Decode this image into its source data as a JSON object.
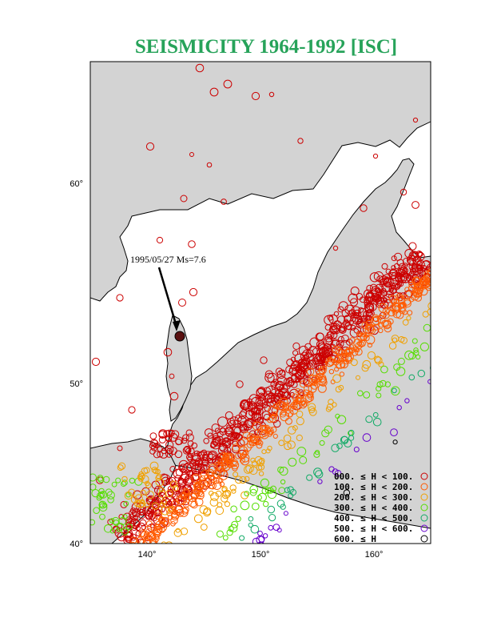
{
  "title": "SEISMICITY 1964-1992 [ISC]",
  "axes": {
    "lon_range": [
      135,
      165
    ],
    "lat_range": [
      40,
      66
    ],
    "x_ticks": [
      "140°",
      "150°",
      "160°"
    ],
    "x_tick_values": [
      140,
      150,
      160
    ],
    "y_ticks": [
      "60°",
      "50°",
      "40°"
    ],
    "y_tick_values": [
      60,
      50,
      40
    ]
  },
  "annotation": {
    "label": "1995/05/27 Ms=7.6",
    "event_lon": 142.8,
    "event_lat": 52.6
  },
  "colors": {
    "land": "#d3d3d3",
    "sea": "#ffffff",
    "depth": [
      "#cc0000",
      "#ff5a00",
      "#f0a000",
      "#55dd00",
      "#11aa66",
      "#6600cc",
      "#000000"
    ]
  },
  "legend": {
    "entries": [
      "000. ≤ H < 100.",
      "100. ≤ H < 200.",
      "200. ≤ H < 300.",
      "300. ≤ H < 400.",
      "400. ≤ H < 500.",
      "500. ≤ H < 600.",
      "600. ≤ H"
    ]
  }
}
